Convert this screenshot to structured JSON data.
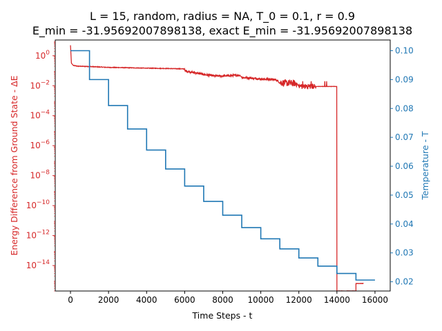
{
  "chart_data": {
    "type": "line",
    "title_line1": "L = 15, random, radius = NA, T_0 = 0.1, r = 0.9",
    "title_line2": "E_min = -31.95692007898138, exact E_min = -31.95692007898138",
    "xlabel": "Time Steps - t",
    "ylabel_left": "Energy Difference from Ground State - ΔE",
    "ylabel_right": "Temperature - T",
    "xlim": [
      -800,
      16800
    ],
    "ylim_left_log10": [
      -15.7,
      1.05
    ],
    "ylim_right": [
      0.0168,
      0.1037
    ],
    "x_ticks": [
      0,
      2000,
      4000,
      6000,
      8000,
      10000,
      12000,
      14000,
      16000
    ],
    "x_tick_labels": [
      "0",
      "2000",
      "4000",
      "6000",
      "8000",
      "10000",
      "12000",
      "14000",
      "16000"
    ],
    "y_left_ticks": [
      0,
      -2,
      -4,
      -6,
      -8,
      -10,
      -12,
      -14
    ],
    "y_left_tick_labels": [
      {
        "base": "10",
        "exp": "0"
      },
      {
        "base": "10",
        "exp": "−2"
      },
      {
        "base": "10",
        "exp": "−4"
      },
      {
        "base": "10",
        "exp": "−6"
      },
      {
        "base": "10",
        "exp": "−8"
      },
      {
        "base": "10",
        "exp": "−10"
      },
      {
        "base": "10",
        "exp": "−12"
      },
      {
        "base": "10",
        "exp": "−14"
      }
    ],
    "y_right_ticks": [
      0.02,
      0.03,
      0.04,
      0.05,
      0.06,
      0.07,
      0.08,
      0.09,
      0.1
    ],
    "y_right_tick_labels": [
      "0.02",
      "0.03",
      "0.04",
      "0.05",
      "0.06",
      "0.07",
      "0.08",
      "0.09",
      "0.10"
    ],
    "series": [
      {
        "axis": "left",
        "color": "#d62728",
        "style": "energy_noisy",
        "x": [
          0,
          50,
          150,
          400,
          1000,
          2000,
          3000,
          4000,
          5000,
          6000,
          6000,
          7000,
          7600,
          8000,
          8900,
          9000,
          10000,
          10800,
          11000,
          11900,
          12000,
          12900,
          13000,
          13990,
          14000,
          15000,
          15000,
          15400
        ],
        "log10_y": [
          0.7,
          -0.5,
          -0.65,
          -0.7,
          -0.72,
          -0.78,
          -0.8,
          -0.83,
          -0.85,
          -0.88,
          -1.0,
          -1.25,
          -1.35,
          -1.35,
          -1.3,
          -1.45,
          -1.55,
          -1.6,
          -1.8,
          -1.85,
          -2.05,
          -2.05,
          -2.05,
          -2.05,
          -15.7,
          -15.7,
          -15.2,
          -15.2
        ]
      },
      {
        "axis": "right",
        "color": "#1f77b4",
        "style": "step",
        "x": [
          0,
          1000,
          2000,
          3000,
          4000,
          5000,
          6000,
          7000,
          8000,
          9000,
          10000,
          11000,
          12000,
          13000,
          14000,
          15000,
          16000
        ],
        "y": [
          0.1,
          0.09,
          0.081,
          0.0729,
          0.06561,
          0.059049,
          0.0531441,
          0.04782969,
          0.043046721,
          0.0387420489,
          0.03486784401,
          0.031381059609,
          0.0282429536481,
          0.02541865828329,
          0.022876792454961,
          0.0205891132094649,
          0.0205891132094649
        ]
      }
    ]
  }
}
